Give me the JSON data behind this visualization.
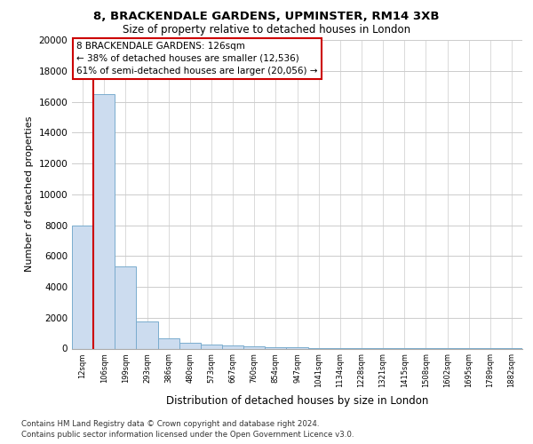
{
  "title": "8, BRACKENDALE GARDENS, UPMINSTER, RM14 3XB",
  "subtitle": "Size of property relative to detached houses in London",
  "xlabel": "Distribution of detached houses by size in London",
  "ylabel": "Number of detached properties",
  "annotation_line1": "8 BRACKENDALE GARDENS: 126sqm",
  "annotation_line2": "← 38% of detached houses are smaller (12,536)",
  "annotation_line3": "61% of semi-detached houses are larger (20,056) →",
  "footer1": "Contains HM Land Registry data © Crown copyright and database right 2024.",
  "footer2": "Contains public sector information licensed under the Open Government Licence v3.0.",
  "bar_labels": [
    "12sqm",
    "106sqm",
    "199sqm",
    "293sqm",
    "386sqm",
    "480sqm",
    "573sqm",
    "667sqm",
    "760sqm",
    "854sqm",
    "947sqm",
    "1041sqm",
    "1134sqm",
    "1228sqm",
    "1321sqm",
    "1415sqm",
    "1508sqm",
    "1602sqm",
    "1695sqm",
    "1789sqm",
    "1882sqm"
  ],
  "bar_values": [
    8000,
    16500,
    5300,
    1750,
    650,
    350,
    250,
    175,
    150,
    100,
    75,
    50,
    30,
    20,
    15,
    10,
    8,
    5,
    3,
    2,
    1
  ],
  "bar_color": "#ccdcef",
  "bar_edge_color": "#7aacce",
  "highlight_bar_index": 1,
  "red_line_color": "#cc0000",
  "annotation_box_edge_color": "#cc0000",
  "ylim": [
    0,
    20000
  ],
  "yticks": [
    0,
    2000,
    4000,
    6000,
    8000,
    10000,
    12000,
    14000,
    16000,
    18000,
    20000
  ],
  "background_color": "#ffffff",
  "grid_color": "#cccccc"
}
